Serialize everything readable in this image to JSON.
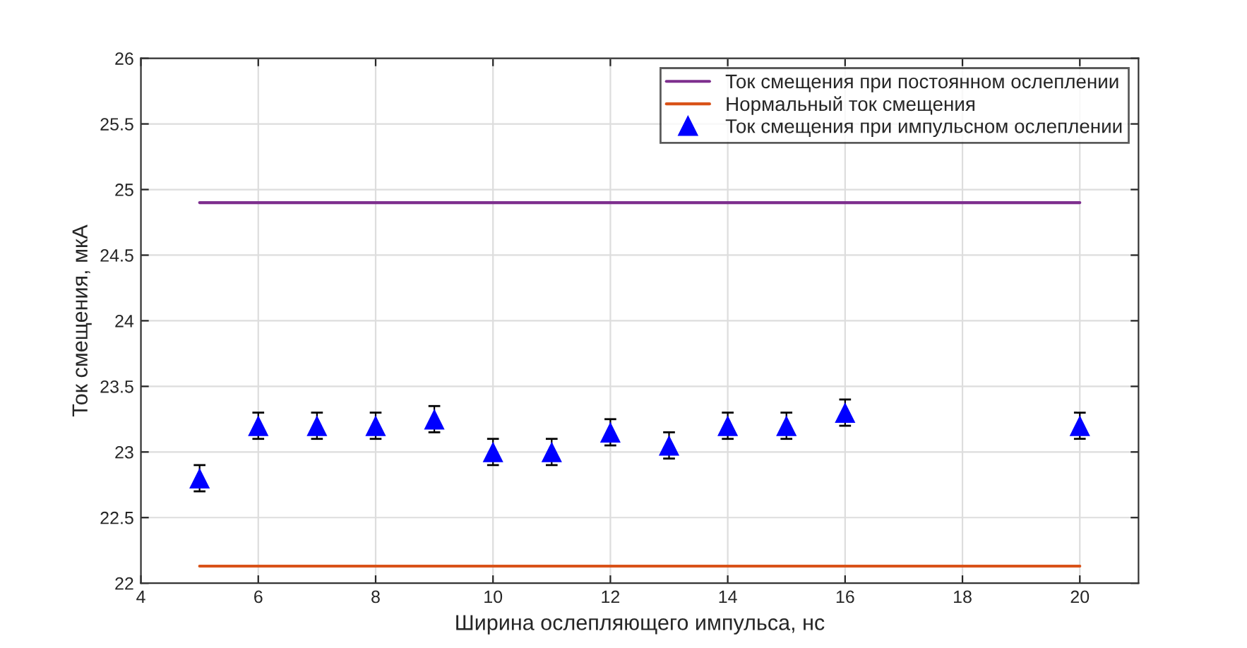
{
  "chart_data": {
    "type": "scatter",
    "xlabel": "Ширина ослепляющего импульса, нс",
    "ylabel": "Ток смещения, мкА",
    "xlim": [
      4,
      21
    ],
    "xticks": [
      4,
      6,
      8,
      10,
      12,
      14,
      16,
      18,
      20
    ],
    "ylim": [
      22,
      26
    ],
    "yticks": [
      22,
      22.5,
      23,
      23.5,
      24,
      24.5,
      25,
      25.5,
      26
    ],
    "grid": true,
    "legend": "top right",
    "series": [
      {
        "name": "Ток смещения при постоянном ослеплении",
        "type": "line",
        "color": "#7e2f8e",
        "x": [
          5,
          20
        ],
        "values": [
          24.9,
          24.9
        ]
      },
      {
        "name": "Нормальный ток смещения",
        "type": "line",
        "color": "#d95319",
        "x": [
          5,
          20
        ],
        "values": [
          22.13,
          22.13
        ]
      },
      {
        "name": "Ток смещения при импульсном ослеплении",
        "marker": "triangle",
        "color": "#0000ff",
        "x": [
          5,
          6,
          7,
          8,
          9,
          10,
          11,
          12,
          13,
          14,
          15,
          16,
          20
        ],
        "values": [
          22.8,
          23.2,
          23.2,
          23.2,
          23.25,
          23.0,
          23.0,
          23.15,
          23.05,
          23.2,
          23.2,
          23.3,
          23.2
        ],
        "errors": [
          0.1,
          0.1,
          0.1,
          0.1,
          0.1,
          0.1,
          0.1,
          0.1,
          0.1,
          0.1,
          0.1,
          0.1,
          0.1
        ]
      }
    ]
  }
}
